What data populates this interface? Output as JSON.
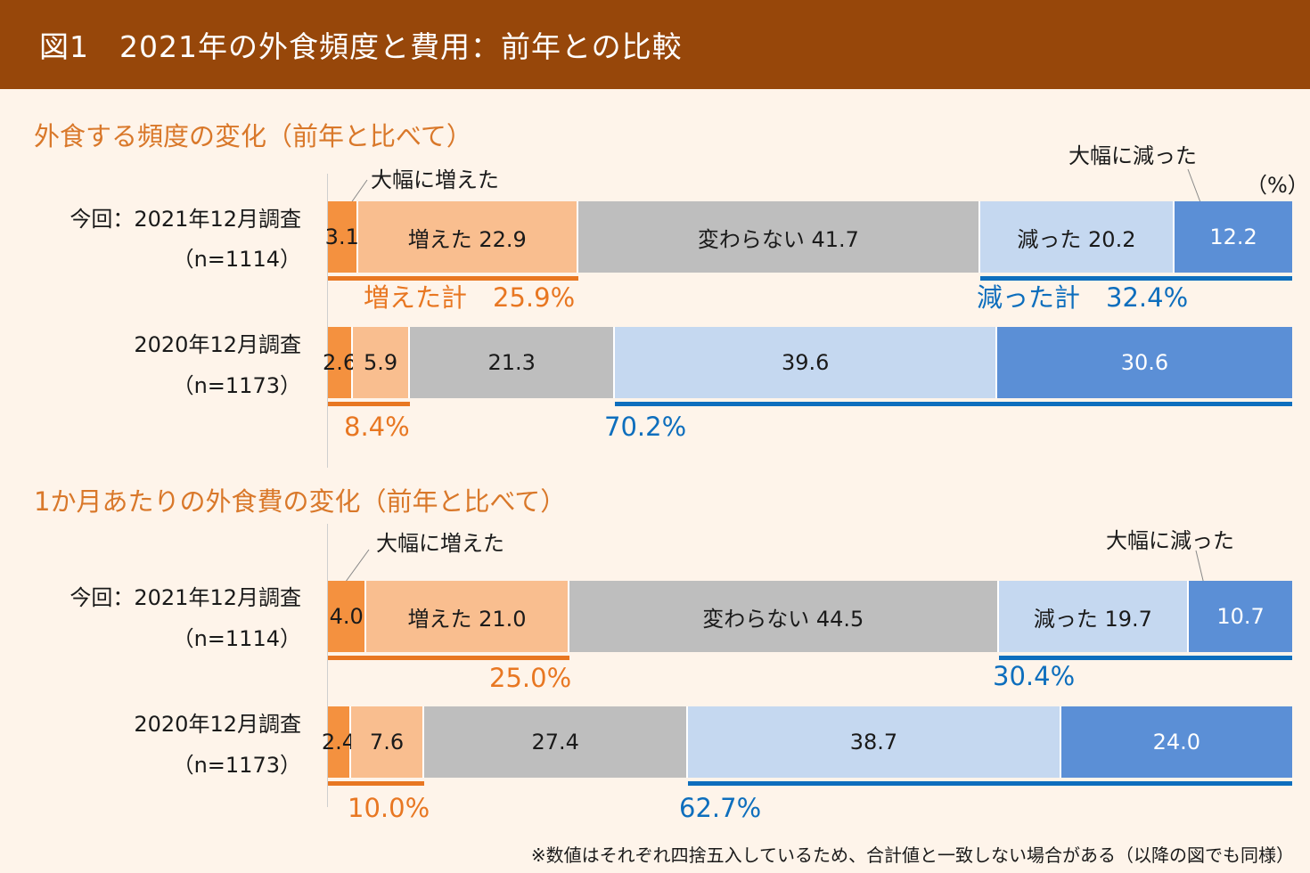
{
  "header": {
    "title": "図1　2021年の外食頻度と費用：前年との比較"
  },
  "colors": {
    "header_bg": "#97470A",
    "seg": [
      "#F4913F",
      "#F9BE8F",
      "#BEBEBE",
      "#C5D8F0",
      "#5B8FD6"
    ],
    "increase": "#E87722",
    "decrease": "#0D6EBD"
  },
  "unit": "（%）",
  "note": "※数値はそれぞれ四捨五入しているため、合計値と一致しない場合がある（以降の図でも同様）",
  "chart_data": [
    {
      "type": "bar",
      "orientation": "horizontal",
      "stacked": "100%",
      "title": "外食する頻度の変化（前年と比べて）",
      "categories": [
        "大幅に増えた",
        "増えた",
        "変わらない",
        "減った",
        "大幅に減った"
      ],
      "callouts": {
        "big_increase": "大幅に増えた",
        "big_decrease": "大幅に減った"
      },
      "rows": [
        {
          "label": "今回：2021年12月調査",
          "n": "（n=1114）",
          "values": [
            3.1,
            22.9,
            41.7,
            20.2,
            12.2
          ],
          "prefix": [
            "",
            "増えた",
            "変わらない",
            "減った",
            ""
          ],
          "increase_total": "増えた計　25.9%",
          "decrease_total": "減った計　32.4%"
        },
        {
          "label": "2020年12月調査",
          "n": "（n=1173）",
          "values": [
            2.6,
            5.9,
            21.3,
            39.6,
            30.6
          ],
          "prefix": [
            "",
            "",
            "",
            "",
            ""
          ],
          "increase_total": "8.4%",
          "decrease_total": "70.2%"
        }
      ]
    },
    {
      "type": "bar",
      "orientation": "horizontal",
      "stacked": "100%",
      "title": "1か月あたりの外食費の変化（前年と比べて）",
      "categories": [
        "大幅に増えた",
        "増えた",
        "変わらない",
        "減った",
        "大幅に減った"
      ],
      "callouts": {
        "big_increase": "大幅に増えた",
        "big_decrease": "大幅に減った"
      },
      "rows": [
        {
          "label": "今回：2021年12月調査",
          "n": "（n=1114）",
          "values": [
            4.0,
            21.0,
            44.5,
            19.7,
            10.7
          ],
          "prefix": [
            "",
            "増えた",
            "変わらない",
            "減った",
            ""
          ],
          "increase_total": "25.0%",
          "decrease_total": "30.4%"
        },
        {
          "label": "2020年12月調査",
          "n": "（n=1173）",
          "values": [
            2.4,
            7.6,
            27.4,
            38.7,
            24.0
          ],
          "prefix": [
            "",
            "",
            "",
            "",
            ""
          ],
          "increase_total": "10.0%",
          "decrease_total": "62.7%"
        }
      ]
    }
  ]
}
